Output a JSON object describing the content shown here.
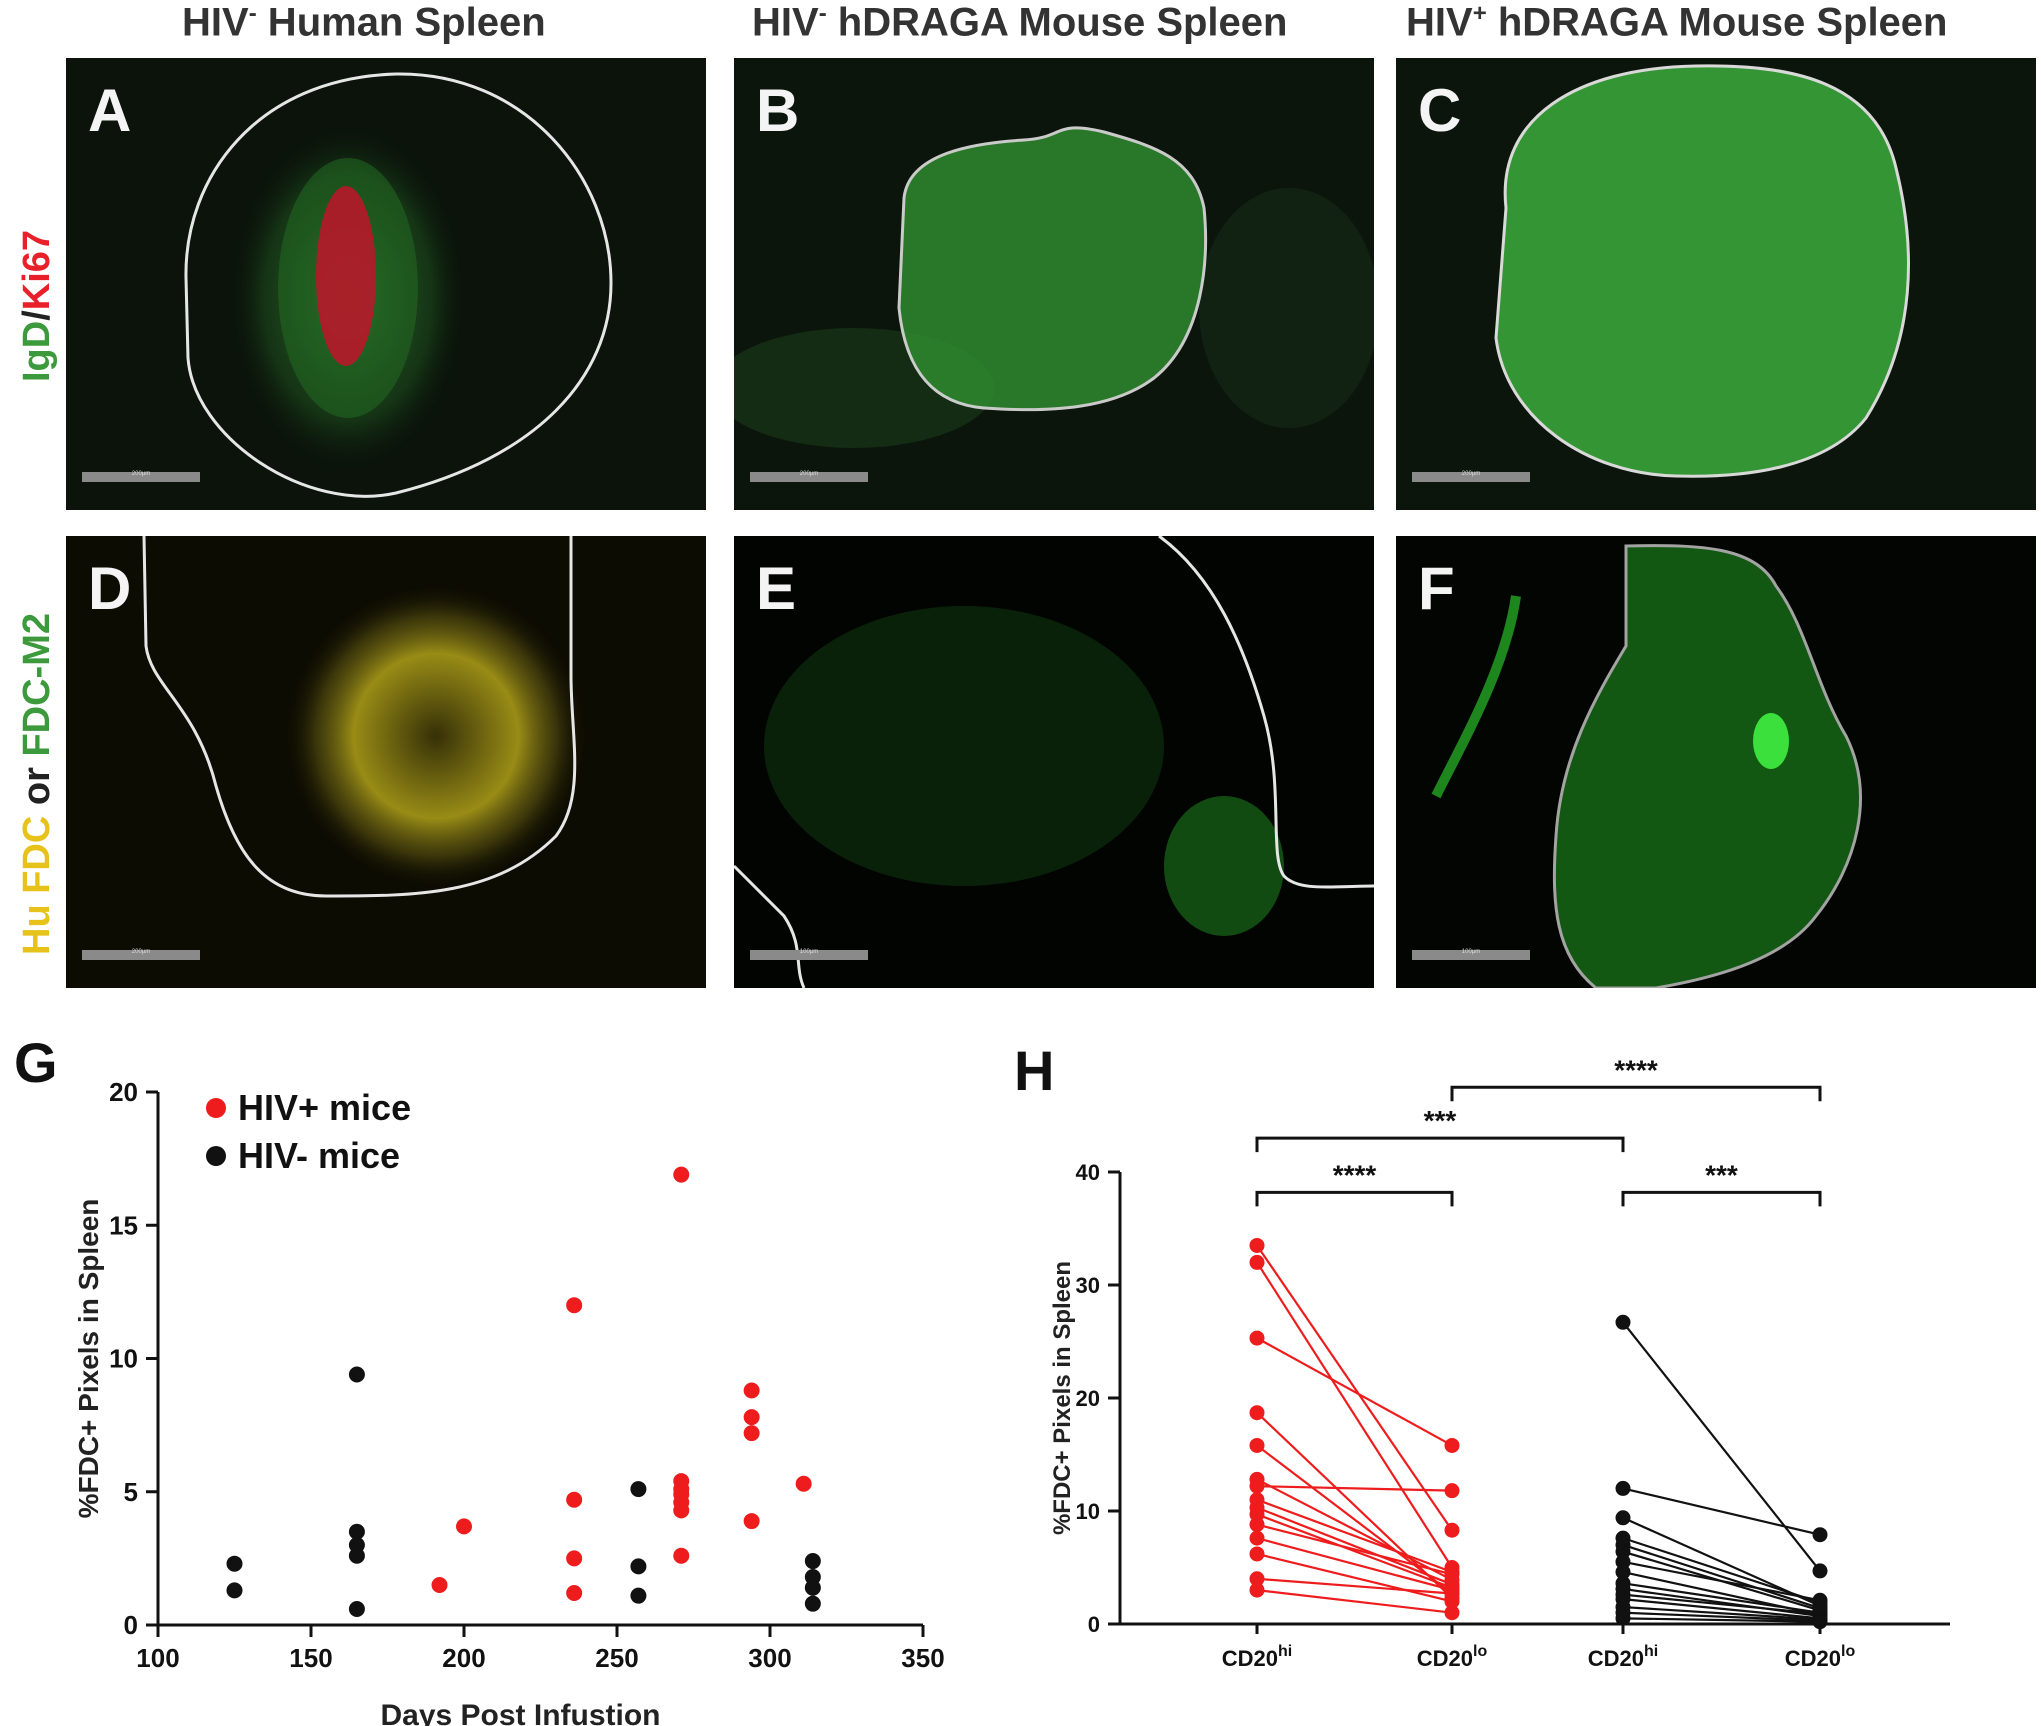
{
  "columns": [
    {
      "pre": "HIV",
      "sup": "-",
      "post": " Human Spleen"
    },
    {
      "pre": "HIV",
      "sup": "-",
      "post": " hDRAGA Mouse Spleen"
    },
    {
      "pre": "HIV",
      "sup": "+",
      "post": " hDRAGA Mouse Spleen"
    }
  ],
  "row_labels": {
    "top": {
      "a": "IgD",
      "b": "/",
      "c": "Ki67"
    },
    "bottom": {
      "a": "Hu ",
      "b": "FDC",
      "c": " or ",
      "d": "FDC-M2"
    }
  },
  "panels": {
    "A": {
      "label": "A",
      "scale": "200µm"
    },
    "B": {
      "label": "B",
      "scale": "200µm"
    },
    "C": {
      "label": "C",
      "scale": "200µm"
    },
    "D": {
      "label": "D",
      "scale": "200µm"
    },
    "E": {
      "label": "E",
      "scale": "100µm"
    },
    "F": {
      "label": "F",
      "scale": "100µm"
    }
  },
  "colors": {
    "red": "#ee1c1c",
    "black": "#111111",
    "green": "#3cc83c",
    "yellow": "#d8cc20"
  },
  "chart_data": [
    {
      "panel": "G",
      "type": "scatter",
      "xlabel": "Days Post Infustion",
      "ylabel": "%FDC+ Pixels in Spleen",
      "xlim": [
        100,
        350
      ],
      "ylim": [
        0,
        20
      ],
      "xticks": [
        100,
        150,
        200,
        250,
        300,
        350
      ],
      "yticks": [
        0,
        5,
        10,
        15,
        20
      ],
      "legend": "top-left",
      "series": [
        {
          "name": "HIV+ mice",
          "color": "#ee1c1c",
          "points": [
            [
              192,
              1.5
            ],
            [
              200,
              3.7
            ],
            [
              236,
              12.0
            ],
            [
              236,
              4.7
            ],
            [
              236,
              2.5
            ],
            [
              236,
              1.2
            ],
            [
              271,
              16.9
            ],
            [
              271,
              5.4
            ],
            [
              271,
              5.1
            ],
            [
              271,
              4.9
            ],
            [
              271,
              4.6
            ],
            [
              271,
              4.3
            ],
            [
              271,
              2.6
            ],
            [
              294,
              8.8
            ],
            [
              294,
              7.8
            ],
            [
              294,
              7.2
            ],
            [
              294,
              3.9
            ],
            [
              311,
              5.3
            ]
          ]
        },
        {
          "name": "HIV- mice",
          "color": "#111111",
          "points": [
            [
              125,
              2.3
            ],
            [
              125,
              1.3
            ],
            [
              165,
              9.4
            ],
            [
              165,
              3.5
            ],
            [
              165,
              3.0
            ],
            [
              165,
              2.6
            ],
            [
              165,
              0.6
            ],
            [
              257,
              5.1
            ],
            [
              257,
              2.2
            ],
            [
              257,
              1.1
            ],
            [
              314,
              2.4
            ],
            [
              314,
              1.8
            ],
            [
              314,
              1.4
            ],
            [
              314,
              0.8
            ]
          ]
        }
      ]
    },
    {
      "panel": "H",
      "type": "scatter",
      "xlabel": "",
      "ylabel": "%FDC+ Pixels in Spleen",
      "ylim": [
        0,
        40
      ],
      "yticks": [
        0,
        10,
        20,
        30,
        40
      ],
      "categories": [
        {
          "base": "CD20",
          "sup": "hi"
        },
        {
          "base": "CD20",
          "sup": "lo"
        },
        {
          "base": "CD20",
          "sup": "hi"
        },
        {
          "base": "CD20",
          "sup": "lo"
        }
      ],
      "series": [
        {
          "color": "#ee1c1c",
          "from": 0,
          "to": 1,
          "pairs": [
            [
              33.5,
              8.3
            ],
            [
              32.0,
              5.0
            ],
            [
              25.3,
              15.8
            ],
            [
              18.7,
              2.3
            ],
            [
              15.8,
              2.7
            ],
            [
              12.8,
              3.9
            ],
            [
              12.2,
              11.8
            ],
            [
              11.0,
              4.6
            ],
            [
              10.3,
              3.5
            ],
            [
              9.7,
              3.2
            ],
            [
              8.8,
              4.4
            ],
            [
              7.6,
              3.0
            ],
            [
              6.2,
              2.0
            ],
            [
              4.0,
              2.7
            ],
            [
              3.0,
              1.0
            ]
          ]
        },
        {
          "color": "#111111",
          "from": 2,
          "to": 3,
          "pairs": [
            [
              26.7,
              4.7
            ],
            [
              12.0,
              7.9
            ],
            [
              9.4,
              1.6
            ],
            [
              7.6,
              1.9
            ],
            [
              7.0,
              1.4
            ],
            [
              6.4,
              1.2
            ],
            [
              5.5,
              2.1
            ],
            [
              4.6,
              0.8
            ],
            [
              3.6,
              1.0
            ],
            [
              3.1,
              0.7
            ],
            [
              2.6,
              0.9
            ],
            [
              2.2,
              0.5
            ],
            [
              1.5,
              0.4
            ],
            [
              1.0,
              0.3
            ],
            [
              0.5,
              0.2
            ]
          ]
        }
      ],
      "brackets": [
        {
          "from": 0,
          "to": 1,
          "level": 38.2,
          "label": "****"
        },
        {
          "from": 2,
          "to": 3,
          "level": 38.2,
          "label": "***"
        },
        {
          "from": 0,
          "to": 2,
          "level": 43.0,
          "label": "***"
        },
        {
          "from": 1,
          "to": 3,
          "level": 47.5,
          "label": "****"
        }
      ]
    }
  ],
  "panel_letters": {
    "G": "G",
    "H": "H"
  }
}
